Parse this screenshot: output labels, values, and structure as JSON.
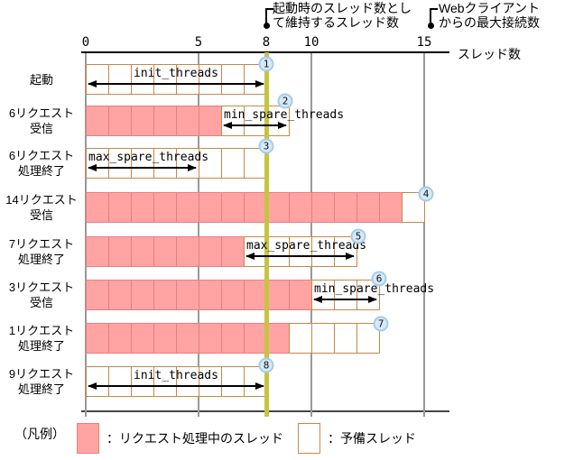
{
  "axis": {
    "label": "スレッド数",
    "ticks": [
      {
        "value": 0,
        "label": "0",
        "highlight": false
      },
      {
        "value": 5,
        "label": "5",
        "highlight": false
      },
      {
        "value": 8,
        "label": "8",
        "highlight": true
      },
      {
        "value": 10,
        "label": "10",
        "highlight": false
      },
      {
        "value": 15,
        "label": "15",
        "highlight": false
      }
    ]
  },
  "callouts": {
    "keep_threads": {
      "line1": "起動時のスレッド数とし",
      "line2": "て維持するスレッド数",
      "at_value": 8
    },
    "max_connections": {
      "line1": "Webクライアント",
      "line2": "からの最大接続数",
      "at_value": 15
    }
  },
  "rows": [
    {
      "label_lines": [
        "起動"
      ],
      "busy": 0,
      "spare": 8,
      "marker": "1",
      "annotation": {
        "text": "init_threads",
        "from": 0,
        "to": 8,
        "align": "center"
      }
    },
    {
      "label_lines": [
        "6リクエスト",
        "受信"
      ],
      "busy": 6,
      "spare": 3,
      "marker": "2",
      "annotation": {
        "text": "min_spare_threads",
        "from": 6,
        "to": 9,
        "align": "left"
      }
    },
    {
      "label_lines": [
        "6リクエスト",
        "処理終了"
      ],
      "busy": 0,
      "spare": 8,
      "marker": "3",
      "annotation": {
        "text": "max_spare_threads",
        "from": 0,
        "to": 5,
        "align": "left"
      }
    },
    {
      "label_lines": [
        "14リクエスト",
        "受信"
      ],
      "busy": 14,
      "spare": 1,
      "marker": "4",
      "annotation": null
    },
    {
      "label_lines": [
        "7リクエスト",
        "処理終了"
      ],
      "busy": 7,
      "spare": 5,
      "marker": "5",
      "annotation": {
        "text": "max_spare_threads",
        "from": 7,
        "to": 12,
        "align": "left"
      }
    },
    {
      "label_lines": [
        "3リクエスト",
        "受信"
      ],
      "busy": 10,
      "spare": 3,
      "marker": "6",
      "annotation": {
        "text": "min_spare_threads",
        "from": 10,
        "to": 13,
        "align": "left"
      }
    },
    {
      "label_lines": [
        "1リクエスト",
        "処理終了"
      ],
      "busy": 9,
      "spare": 4,
      "marker": "7",
      "annotation": null
    },
    {
      "label_lines": [
        "9リクエスト",
        "処理終了"
      ],
      "busy": 0,
      "spare": 8,
      "marker": "8",
      "annotation": {
        "text": "init_threads",
        "from": 0,
        "to": 8,
        "align": "center"
      }
    }
  ],
  "legend": {
    "title": "（凡例）",
    "busy_label": "：リクエスト処理中のスレッド",
    "spare_label": "：予備スレッド"
  },
  "colors": {
    "busy_fill": "#FFA3A3",
    "busy_border": "#E87F7F",
    "spare_border": "#C6884A",
    "threshold_line": "#C5C441",
    "grid": "#999999",
    "marker_fill": "#D5EAF9",
    "marker_border": "#A5CBEA"
  }
}
